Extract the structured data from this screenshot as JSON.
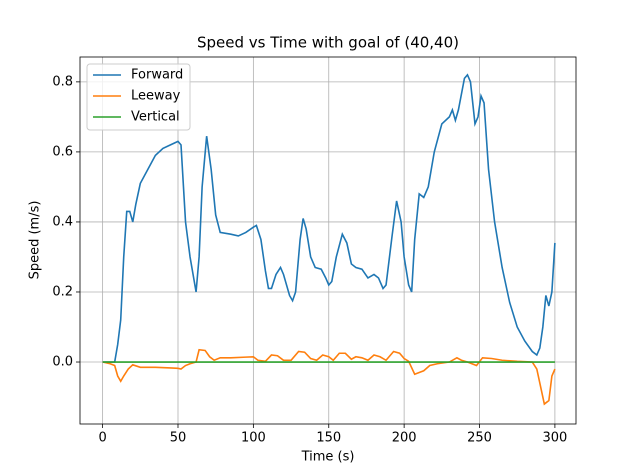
{
  "chart_data": {
    "type": "line",
    "title": "Speed vs Time with goal of (40,40)",
    "xlabel": "Time (s)",
    "ylabel": "Speed (m/s)",
    "xlim": [
      -15,
      314
    ],
    "ylim": [
      -0.177,
      0.871
    ],
    "xticks": [
      0,
      50,
      100,
      150,
      200,
      250,
      300
    ],
    "yticks": [
      {
        "value": 0,
        "label": "0.0"
      },
      0.2,
      0.4,
      0.6,
      0.8
    ],
    "grid": true,
    "legend": "upper left",
    "series": [
      {
        "name": "Forward",
        "color": "#1f77b4",
        "x": [
          0,
          5,
          8,
          10,
          12,
          14,
          16,
          18,
          20,
          22,
          25,
          30,
          35,
          40,
          45,
          50,
          52,
          55,
          58,
          62,
          64,
          66,
          69,
          72,
          75,
          78,
          85,
          90,
          95,
          100,
          102,
          105,
          108,
          110,
          112,
          115,
          118,
          120,
          124,
          126,
          128,
          131,
          133,
          135,
          138,
          141,
          145,
          148,
          150,
          152,
          155,
          159,
          162,
          165,
          168,
          172,
          176,
          180,
          183,
          186,
          188,
          192,
          195,
          198,
          200,
          203,
          205,
          207,
          210,
          213,
          216,
          220,
          225,
          230,
          232,
          234,
          236,
          240,
          242,
          244,
          247,
          249,
          251,
          253,
          256,
          260,
          265,
          270,
          275,
          280,
          285,
          288,
          290,
          292,
          294,
          296,
          298,
          300
        ],
        "values": [
          0,
          0,
          0,
          0.05,
          0.12,
          0.3,
          0.43,
          0.43,
          0.4,
          0.45,
          0.51,
          0.55,
          0.59,
          0.61,
          0.62,
          0.63,
          0.62,
          0.4,
          0.3,
          0.2,
          0.3,
          0.5,
          0.645,
          0.55,
          0.42,
          0.37,
          0.365,
          0.36,
          0.37,
          0.385,
          0.39,
          0.35,
          0.26,
          0.21,
          0.21,
          0.25,
          0.27,
          0.25,
          0.19,
          0.175,
          0.2,
          0.35,
          0.41,
          0.38,
          0.3,
          0.27,
          0.265,
          0.24,
          0.22,
          0.23,
          0.3,
          0.365,
          0.34,
          0.28,
          0.27,
          0.265,
          0.24,
          0.25,
          0.24,
          0.21,
          0.22,
          0.36,
          0.46,
          0.4,
          0.3,
          0.22,
          0.2,
          0.35,
          0.48,
          0.47,
          0.5,
          0.6,
          0.68,
          0.7,
          0.72,
          0.69,
          0.72,
          0.81,
          0.82,
          0.8,
          0.68,
          0.7,
          0.76,
          0.74,
          0.55,
          0.4,
          0.27,
          0.17,
          0.1,
          0.06,
          0.03,
          0.02,
          0.04,
          0.1,
          0.19,
          0.16,
          0.2,
          0.34
        ]
      },
      {
        "name": "Leeway",
        "color": "#ff7f0e",
        "x": [
          0,
          5,
          8,
          10,
          12,
          14,
          17,
          20,
          25,
          35,
          45,
          50,
          52,
          55,
          58,
          62,
          64,
          68,
          71,
          74,
          78,
          85,
          95,
          100,
          103,
          108,
          112,
          116,
          120,
          125,
          130,
          134,
          138,
          142,
          146,
          150,
          153,
          157,
          161,
          165,
          168,
          172,
          176,
          180,
          184,
          188,
          193,
          197,
          200,
          203,
          207,
          210,
          213,
          217,
          222,
          230,
          235,
          238,
          242,
          248,
          252,
          258,
          265,
          275,
          285,
          288,
          291,
          293,
          296,
          298,
          300
        ],
        "values": [
          0,
          -0.005,
          -0.01,
          -0.04,
          -0.055,
          -0.04,
          -0.02,
          -0.008,
          -0.015,
          -0.015,
          -0.017,
          -0.018,
          -0.02,
          -0.01,
          -0.005,
          0,
          0.035,
          0.033,
          0.015,
          0.005,
          0.012,
          0.012,
          0.014,
          0.015,
          0.005,
          0.002,
          0.02,
          0.018,
          0.005,
          0.005,
          0.03,
          0.028,
          0.01,
          0.005,
          0.02,
          0.015,
          0.005,
          0.025,
          0.025,
          0.008,
          0.015,
          0.012,
          0.005,
          0.02,
          0.015,
          0.005,
          0.03,
          0.025,
          0.01,
          0.002,
          -0.035,
          -0.03,
          -0.025,
          -0.01,
          -0.005,
          0,
          0.012,
          0.005,
          0,
          -0.01,
          0.012,
          0.01,
          0.005,
          0.002,
          0,
          -0.02,
          -0.08,
          -0.12,
          -0.11,
          -0.04,
          -0.02
        ]
      },
      {
        "name": "Vertical",
        "color": "#2ca02c",
        "x": [
          0,
          300
        ],
        "values": [
          0,
          0
        ]
      }
    ]
  }
}
